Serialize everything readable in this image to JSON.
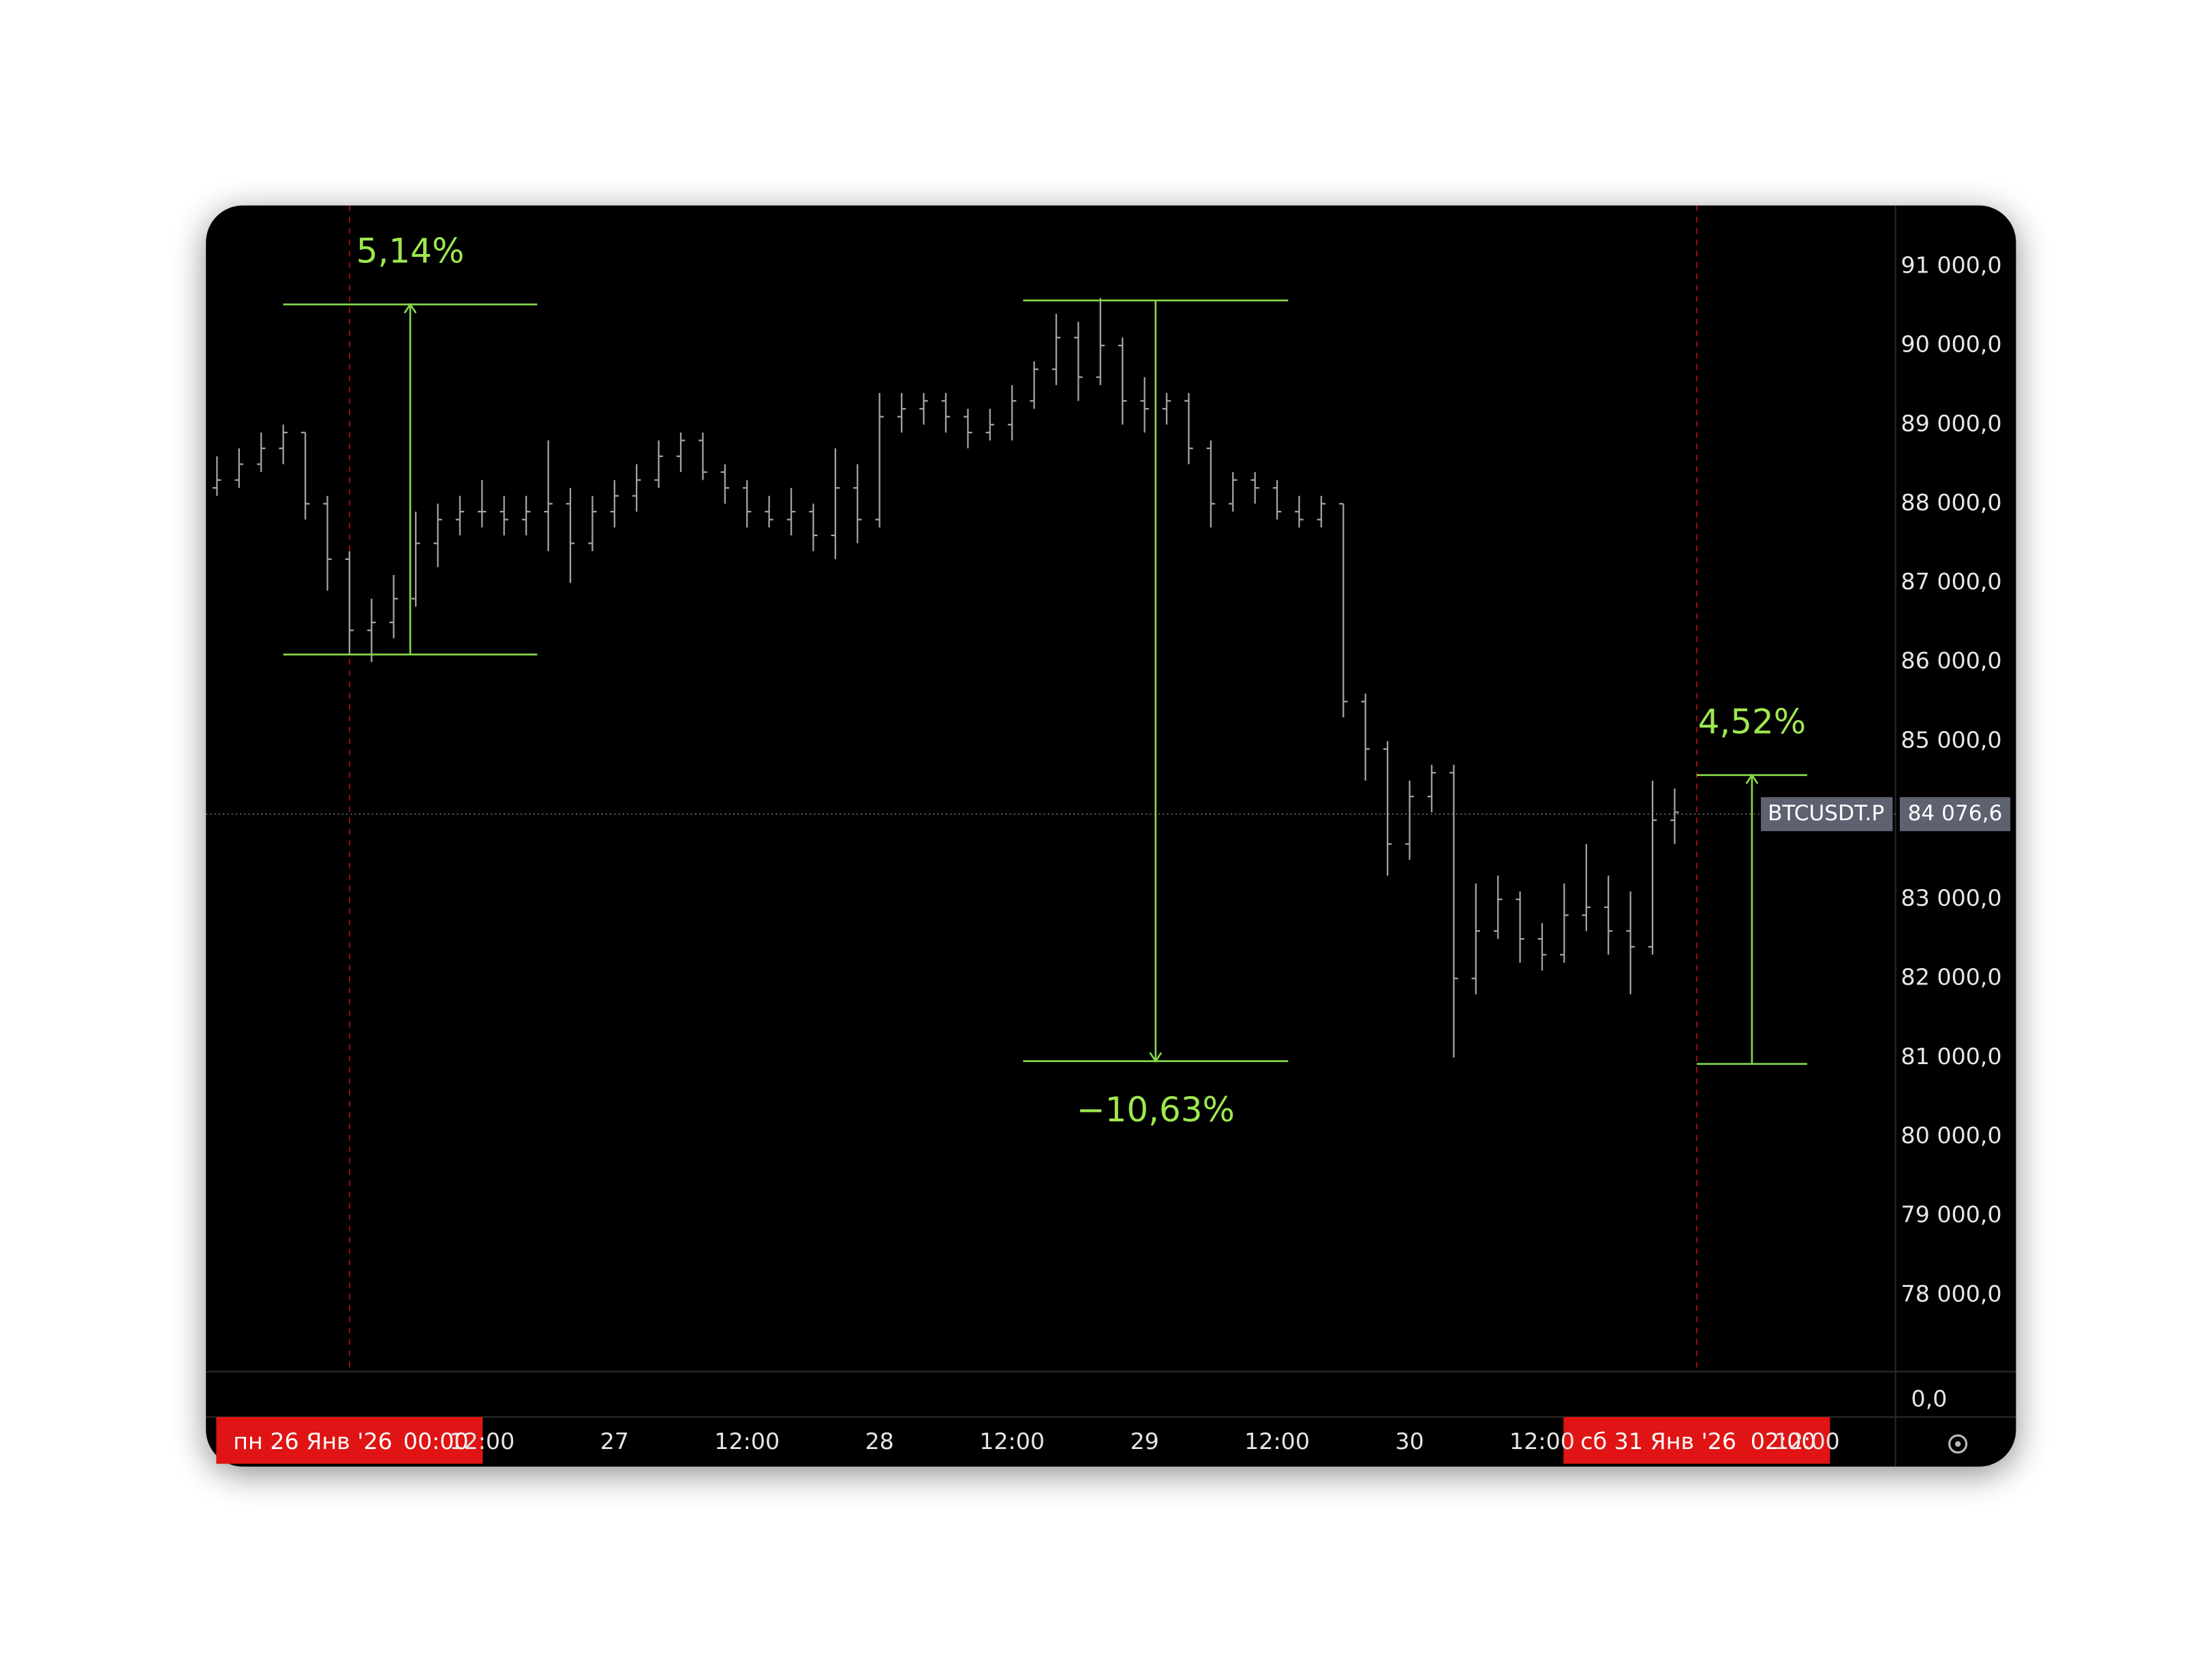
{
  "chart_data": {
    "type": "ohlc",
    "symbol": "BTCUSDT.P",
    "bar_color": "#a3a3a3",
    "ruler_color": "#86d64a",
    "ruler_text_color": "#9fe84f",
    "marker_color": "#e01414",
    "xlim": [
      -13,
      140
    ],
    "ylim": [
      77030,
      91770
    ],
    "x": [
      -12,
      -10,
      -8,
      -6,
      -4,
      -2,
      0,
      2,
      4,
      6,
      8,
      10,
      12,
      14,
      16,
      18,
      20,
      22,
      24,
      26,
      28,
      30,
      32,
      34,
      36,
      38,
      40,
      42,
      44,
      46,
      48,
      50,
      52,
      54,
      56,
      58,
      60,
      62,
      64,
      66,
      68,
      70,
      72,
      74,
      76,
      78,
      80,
      82,
      84,
      86,
      88,
      90,
      92,
      94,
      96,
      98,
      100,
      102,
      104,
      106,
      108,
      110,
      112,
      114,
      116,
      118,
      120
    ],
    "open": [
      88200,
      88300,
      88500,
      88700,
      88900,
      88000,
      87300,
      86400,
      86500,
      86800,
      87500,
      87800,
      87900,
      87900,
      87800,
      87900,
      88000,
      87500,
      87900,
      88100,
      88300,
      88600,
      88800,
      88400,
      88200,
      87900,
      87800,
      87900,
      87600,
      88200,
      87800,
      89100,
      89200,
      89300,
      89100,
      88900,
      89000,
      89300,
      89700,
      90100,
      89600,
      90000,
      89300,
      89200,
      89300,
      88700,
      88000,
      88300,
      88200,
      87900,
      87800,
      88000,
      85500,
      84900,
      83700,
      84300,
      84600,
      82000,
      82600,
      83000,
      82500,
      82300,
      82800,
      82900,
      82600,
      82400,
      84000
    ],
    "high": [
      88600,
      88700,
      88900,
      89000,
      88900,
      88100,
      87400,
      86800,
      87100,
      87900,
      88000,
      88100,
      88300,
      88100,
      88100,
      88800,
      88200,
      88100,
      88300,
      88500,
      88800,
      88900,
      88900,
      88500,
      88300,
      88100,
      88200,
      88000,
      88700,
      88500,
      89400,
      89400,
      89400,
      89400,
      89200,
      89200,
      89500,
      89800,
      90400,
      90300,
      90600,
      90100,
      89600,
      89400,
      89400,
      88800,
      88400,
      88400,
      88300,
      88100,
      88100,
      88000,
      85600,
      85000,
      84500,
      84700,
      84700,
      83200,
      83300,
      83100,
      82700,
      83200,
      83700,
      83300,
      83100,
      84500,
      84400
    ],
    "low": [
      88100,
      88200,
      88400,
      88500,
      87800,
      86900,
      86100,
      86000,
      86300,
      86700,
      87200,
      87600,
      87700,
      87600,
      87600,
      87400,
      87000,
      87400,
      87700,
      87900,
      88200,
      88400,
      88300,
      88000,
      87700,
      87700,
      87600,
      87400,
      87300,
      87500,
      87700,
      88900,
      89000,
      88900,
      88700,
      88800,
      88800,
      89200,
      89500,
      89300,
      89500,
      89000,
      88900,
      89000,
      88500,
      87700,
      87900,
      88000,
      87800,
      87700,
      87700,
      85300,
      84500,
      83300,
      83500,
      84100,
      81000,
      81800,
      82500,
      82200,
      82100,
      82200,
      82600,
      82300,
      81800,
      82300,
      83700
    ],
    "close": [
      88300,
      88500,
      88700,
      88900,
      88000,
      87300,
      86400,
      86500,
      86800,
      87500,
      87800,
      87900,
      87900,
      87800,
      87900,
      88000,
      87500,
      87900,
      88100,
      88300,
      88600,
      88800,
      88400,
      88200,
      87900,
      87800,
      87900,
      87600,
      88200,
      87800,
      89100,
      89200,
      89300,
      89100,
      88900,
      89000,
      89300,
      89700,
      90100,
      89600,
      90000,
      89300,
      89200,
      89300,
      88700,
      88000,
      88300,
      88200,
      87900,
      87800,
      88000,
      85500,
      84900,
      83700,
      84300,
      84600,
      82000,
      82600,
      83000,
      82500,
      82300,
      82800,
      82900,
      82600,
      82400,
      84000,
      84100
    ],
    "last_price": {
      "value": 84076.6,
      "label": "84 076,6"
    },
    "yticks": [
      {
        "value": 91000,
        "label": "91 000,0"
      },
      {
        "value": 90000,
        "label": "90 000,0"
      },
      {
        "value": 89000,
        "label": "89 000,0"
      },
      {
        "value": 88000,
        "label": "88 000,0"
      },
      {
        "value": 87000,
        "label": "87 000,0"
      },
      {
        "value": 86000,
        "label": "86 000,0"
      },
      {
        "value": 85000,
        "label": "85 000,0"
      },
      {
        "value": 83000,
        "label": "83 000,0"
      },
      {
        "value": 82000,
        "label": "82 000,0"
      },
      {
        "value": 81000,
        "label": "81 000,0"
      },
      {
        "value": 80000,
        "label": "80 000,0"
      },
      {
        "value": 79000,
        "label": "79 000,0"
      },
      {
        "value": 78000,
        "label": "78 000,0"
      }
    ],
    "pane2_yticks": [
      {
        "value": 0,
        "label": "0,0"
      }
    ],
    "xticks": [
      {
        "value": 12,
        "label": "12:00"
      },
      {
        "value": 24,
        "label": "27"
      },
      {
        "value": 36,
        "label": "12:00"
      },
      {
        "value": 48,
        "label": "28"
      },
      {
        "value": 60,
        "label": "12:00"
      },
      {
        "value": 72,
        "label": "29"
      },
      {
        "value": 84,
        "label": "12:00"
      },
      {
        "value": 96,
        "label": "30"
      },
      {
        "value": 108,
        "label": "12:00"
      },
      {
        "value": 132,
        "label": "12:00"
      }
    ],
    "rulers": [
      {
        "label": "5,14%",
        "x_start": -6,
        "x_end": 17,
        "price_start": 86094,
        "price_end": 90519
      },
      {
        "label": "−10,63%",
        "x_start": 61,
        "x_end": 85,
        "price_start": 90570,
        "price_end": 80955
      },
      {
        "label": "4,52%",
        "x_start": 122,
        "x_end": 132,
        "price_start": 80920,
        "price_end": 84570
      }
    ],
    "markers": [
      {
        "x": 0,
        "date": "пн 26 Янв '26",
        "time": "00:00"
      },
      {
        "x": 122,
        "date": "сб 31 Янв '26",
        "time": "02:00"
      }
    ]
  }
}
